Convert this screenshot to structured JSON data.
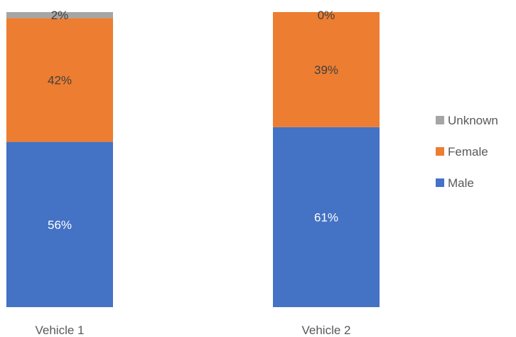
{
  "chart_data": {
    "type": "bar",
    "stacked": true,
    "percent": true,
    "categories": [
      "Vehicle 1",
      "Vehicle 2"
    ],
    "series": [
      {
        "name": "Male",
        "values": [
          56,
          61
        ],
        "labels": [
          "56%",
          "61%"
        ],
        "color": "#4472c4",
        "label_color": "#ffffff"
      },
      {
        "name": "Female",
        "values": [
          42,
          39
        ],
        "labels": [
          "42%",
          "39%"
        ],
        "color": "#ed7d31",
        "label_color": "#404040"
      },
      {
        "name": "Unknown",
        "values": [
          2,
          0
        ],
        "labels": [
          "2%",
          "0%"
        ],
        "color": "#a5a5a5",
        "label_color": "#404040"
      }
    ],
    "ylim": [
      0,
      100
    ],
    "grid": false,
    "legend": {
      "position": "right",
      "order": [
        "Unknown",
        "Female",
        "Male"
      ]
    },
    "title": "",
    "xlabel": "",
    "ylabel": ""
  }
}
